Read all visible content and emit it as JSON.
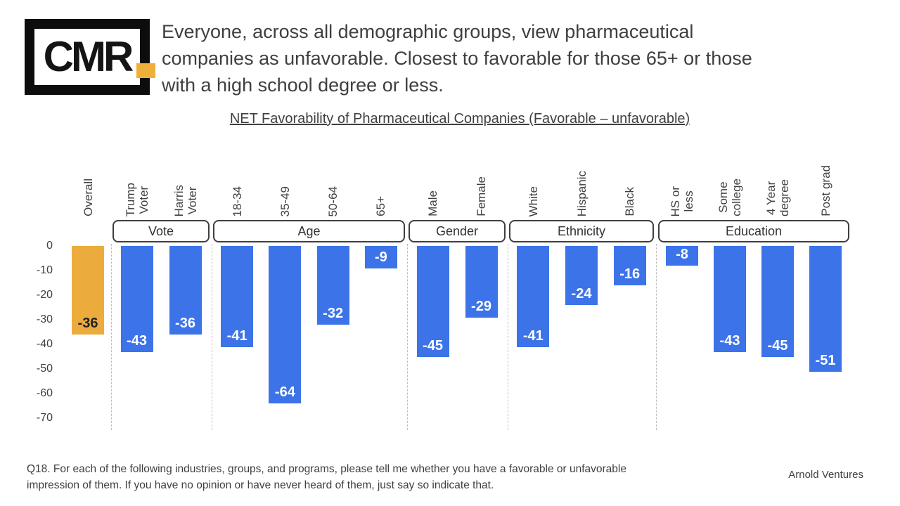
{
  "logo": {
    "text": "CMR",
    "dot_color": "#EFAF3B"
  },
  "headline": {
    "lines": [
      "Everyone, across all demographic groups, view pharmaceutical",
      "companies as unfavorable. Closest to favorable for those 65+ or those",
      "with a high school degree or less."
    ]
  },
  "chart_data": {
    "type": "bar",
    "title": "NET Favorability of Pharmaceutical Companies (Favorable – unfavorable)",
    "categories": [
      "Overall",
      "Trump Voter",
      "Harris Voter",
      "18-34",
      "35-49",
      "50-64",
      "65+",
      "Male",
      "Female",
      "White",
      "Hispanic",
      "Black",
      "HS or less",
      "Some college",
      "4 Year degree",
      "Post grad"
    ],
    "category_display": [
      "Overall",
      "Trump\nVoter",
      "Harris\nVoter",
      "18-34",
      "35-49",
      "50-64",
      "65+",
      "Male",
      "Female",
      "White",
      "Hispanic",
      "Black",
      "HS or\nless",
      "Some\ncollege",
      "4 Year\ndegree",
      "Post grad"
    ],
    "values": [
      -36,
      -43,
      -36,
      -41,
      -64,
      -32,
      -9,
      -45,
      -29,
      -41,
      -24,
      -16,
      -8,
      -43,
      -45,
      -51
    ],
    "groups": [
      {
        "label": "",
        "count": 1
      },
      {
        "label": "Vote",
        "count": 2
      },
      {
        "label": "Age",
        "count": 4
      },
      {
        "label": "Gender",
        "count": 2
      },
      {
        "label": "Ethnicity",
        "count": 3
      },
      {
        "label": "Education",
        "count": 4
      }
    ],
    "ylim": [
      -70,
      0
    ],
    "yticks": [
      0,
      -10,
      -20,
      -30,
      -40,
      -50,
      -60,
      -70
    ],
    "grid": false,
    "legend": "none",
    "colors": {
      "default_bar": "#3D73E8",
      "overall_bar": "#EBAC3D",
      "label_on_blue": "#FFFFFF",
      "label_on_orange": "#222222"
    }
  },
  "footer": {
    "note_line1": "Q18. For each of the following industries, groups, and programs, please tell me whether you have a favorable or unfavorable",
    "note_line2": "impression of them. If you have no opinion or have never heard of them, just say so indicate that.",
    "source": "Arnold Ventures"
  }
}
